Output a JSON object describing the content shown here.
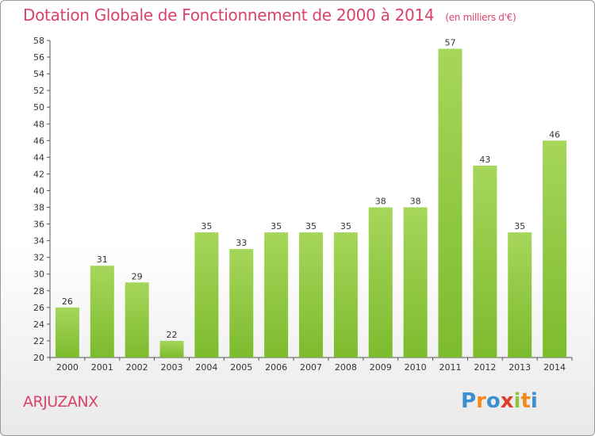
{
  "chart_data": {
    "type": "bar",
    "title": "Dotation Globale de Fonctionnement de 2000 à 2014",
    "unit_note": "(en milliers d'€)",
    "categories": [
      "2000",
      "2001",
      "2002",
      "2003",
      "2004",
      "2005",
      "2006",
      "2007",
      "2008",
      "2009",
      "2010",
      "2011",
      "2012",
      "2013",
      "2014"
    ],
    "values": [
      26,
      31,
      29,
      22,
      35,
      33,
      35,
      35,
      35,
      38,
      38,
      57,
      43,
      35,
      46
    ],
    "ylim": [
      20,
      58
    ],
    "ytick_step": 2,
    "grid": false,
    "bar_color": "#7dbb2e",
    "bar_color_light": "#a6d65a"
  },
  "footer": {
    "location": "ARJUZANX"
  },
  "logo": {
    "letters": [
      "P",
      "r",
      "o",
      "x",
      "i",
      "t",
      "i"
    ],
    "colors": [
      "#3a8fd0",
      "#f28b1c",
      "#3a8fd0",
      "#e23b2e",
      "#8cc63f",
      "#f28b1c",
      "#3a8fd0"
    ]
  },
  "colors": {
    "title": "#d9436a",
    "axis": "#555555"
  }
}
